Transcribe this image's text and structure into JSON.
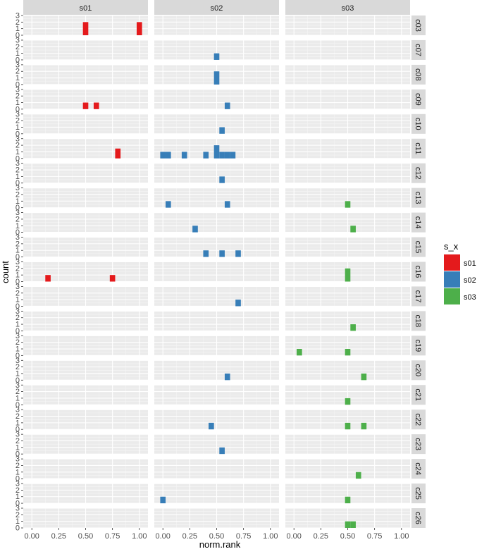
{
  "chart_data": {
    "type": "bar",
    "subtype": "histogram-facet-grid",
    "xlabel": "norm.rank",
    "ylabel": "count",
    "xlim": [
      -0.08,
      1.08
    ],
    "ylim": [
      0,
      3
    ],
    "x_ticks": [
      0,
      0.25,
      0.5,
      0.75,
      1
    ],
    "x_tick_labels": [
      "0.00",
      "0.25",
      "0.50",
      "0.75",
      "1.00"
    ],
    "y_ticks": [
      0,
      1,
      2,
      3
    ],
    "y_tick_labels": [
      "0",
      "1",
      "2",
      "3"
    ],
    "bin_width": 0.05,
    "grid": true,
    "legend": {
      "title": "s_x",
      "position": "right",
      "entries": [
        {
          "name": "s01",
          "color": "#E41A1C"
        },
        {
          "name": "s02",
          "color": "#377EB8"
        },
        {
          "name": "s03",
          "color": "#4DAF4A"
        }
      ]
    },
    "columns": [
      "s01",
      "s02",
      "s03"
    ],
    "rows": [
      "c03",
      "c07",
      "c08",
      "c09",
      "c10",
      "c11",
      "c12",
      "c13",
      "c14",
      "c15",
      "c16",
      "c17",
      "c18",
      "c19",
      "c20",
      "c21",
      "c22",
      "c23",
      "c24",
      "c25",
      "c26"
    ],
    "bars": [
      {
        "row": "c03",
        "col": "s01",
        "x": 0.5,
        "count": 2
      },
      {
        "row": "c03",
        "col": "s01",
        "x": 1.0,
        "count": 2
      },
      {
        "row": "c07",
        "col": "s02",
        "x": 0.5,
        "count": 1
      },
      {
        "row": "c08",
        "col": "s02",
        "x": 0.5,
        "count": 2
      },
      {
        "row": "c09",
        "col": "s01",
        "x": 0.5,
        "count": 1
      },
      {
        "row": "c09",
        "col": "s01",
        "x": 0.6,
        "count": 1
      },
      {
        "row": "c09",
        "col": "s02",
        "x": 0.6,
        "count": 1
      },
      {
        "row": "c10",
        "col": "s02",
        "x": 0.55,
        "count": 1
      },
      {
        "row": "c11",
        "col": "s01",
        "x": 0.8,
        "count": 1.5
      },
      {
        "row": "c11",
        "col": "s02",
        "x": 0.0,
        "count": 1
      },
      {
        "row": "c11",
        "col": "s02",
        "x": 0.05,
        "count": 1
      },
      {
        "row": "c11",
        "col": "s02",
        "x": 0.2,
        "count": 1
      },
      {
        "row": "c11",
        "col": "s02",
        "x": 0.4,
        "count": 1
      },
      {
        "row": "c11",
        "col": "s02",
        "x": 0.5,
        "count": 2
      },
      {
        "row": "c11",
        "col": "s02",
        "x": 0.55,
        "count": 1
      },
      {
        "row": "c11",
        "col": "s02",
        "x": 0.6,
        "count": 1
      },
      {
        "row": "c11",
        "col": "s02",
        "x": 0.65,
        "count": 1
      },
      {
        "row": "c12",
        "col": "s02",
        "x": 0.55,
        "count": 1
      },
      {
        "row": "c13",
        "col": "s02",
        "x": 0.05,
        "count": 1
      },
      {
        "row": "c13",
        "col": "s02",
        "x": 0.6,
        "count": 1
      },
      {
        "row": "c13",
        "col": "s03",
        "x": 0.5,
        "count": 1
      },
      {
        "row": "c14",
        "col": "s02",
        "x": 0.3,
        "count": 1
      },
      {
        "row": "c14",
        "col": "s03",
        "x": 0.55,
        "count": 1
      },
      {
        "row": "c15",
        "col": "s02",
        "x": 0.4,
        "count": 1
      },
      {
        "row": "c15",
        "col": "s02",
        "x": 0.55,
        "count": 1
      },
      {
        "row": "c15",
        "col": "s02",
        "x": 0.7,
        "count": 1
      },
      {
        "row": "c16",
        "col": "s01",
        "x": 0.15,
        "count": 1
      },
      {
        "row": "c16",
        "col": "s01",
        "x": 0.75,
        "count": 1
      },
      {
        "row": "c16",
        "col": "s03",
        "x": 0.5,
        "count": 2
      },
      {
        "row": "c17",
        "col": "s02",
        "x": 0.7,
        "count": 1
      },
      {
        "row": "c18",
        "col": "s03",
        "x": 0.55,
        "count": 1
      },
      {
        "row": "c19",
        "col": "s03",
        "x": 0.05,
        "count": 1
      },
      {
        "row": "c19",
        "col": "s03",
        "x": 0.5,
        "count": 1
      },
      {
        "row": "c20",
        "col": "s02",
        "x": 0.6,
        "count": 1
      },
      {
        "row": "c20",
        "col": "s03",
        "x": 0.65,
        "count": 1
      },
      {
        "row": "c21",
        "col": "s03",
        "x": 0.5,
        "count": 1
      },
      {
        "row": "c22",
        "col": "s02",
        "x": 0.45,
        "count": 1
      },
      {
        "row": "c22",
        "col": "s03",
        "x": 0.5,
        "count": 1
      },
      {
        "row": "c22",
        "col": "s03",
        "x": 0.65,
        "count": 1
      },
      {
        "row": "c23",
        "col": "s02",
        "x": 0.55,
        "count": 1
      },
      {
        "row": "c24",
        "col": "s03",
        "x": 0.6,
        "count": 1
      },
      {
        "row": "c25",
        "col": "s02",
        "x": 0.0,
        "count": 1
      },
      {
        "row": "c25",
        "col": "s03",
        "x": 0.5,
        "count": 1
      },
      {
        "row": "c26",
        "col": "s03",
        "x": 0.5,
        "count": 1
      },
      {
        "row": "c26",
        "col": "s03",
        "x": 0.55,
        "count": 1
      }
    ]
  }
}
